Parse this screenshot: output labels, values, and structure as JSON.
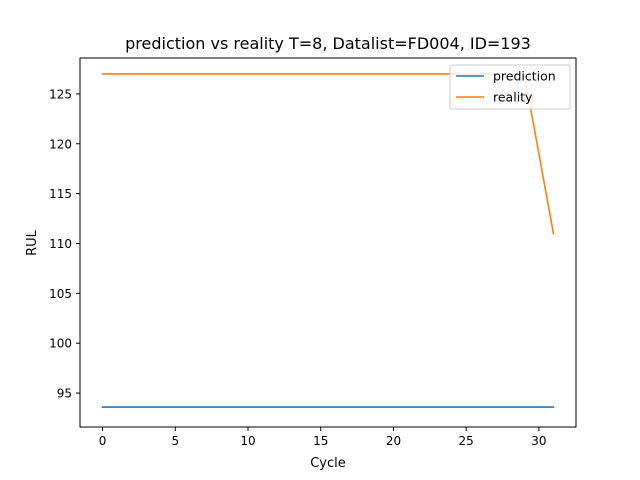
{
  "chart_data": {
    "type": "line",
    "title": "prediction vs reality T=8, Datalist=FD004, ID=193",
    "xlabel": "Cycle",
    "ylabel": "RUL",
    "xlim": [
      -1.55,
      32.55
    ],
    "ylim": [
      91.6,
      128.6
    ],
    "xticks": [
      0,
      5,
      10,
      15,
      20,
      25,
      30
    ],
    "yticks": [
      95,
      100,
      105,
      110,
      115,
      120,
      125
    ],
    "grid": false,
    "legend_position": "top-right",
    "series": [
      {
        "name": "prediction",
        "color": "#1f77b4",
        "x": [
          0,
          31
        ],
        "y": [
          93.6,
          93.6
        ]
      },
      {
        "name": "reality",
        "color": "#ff7f0e",
        "x": [
          0,
          29,
          31
        ],
        "y": [
          127,
          127,
          111
        ]
      }
    ]
  }
}
